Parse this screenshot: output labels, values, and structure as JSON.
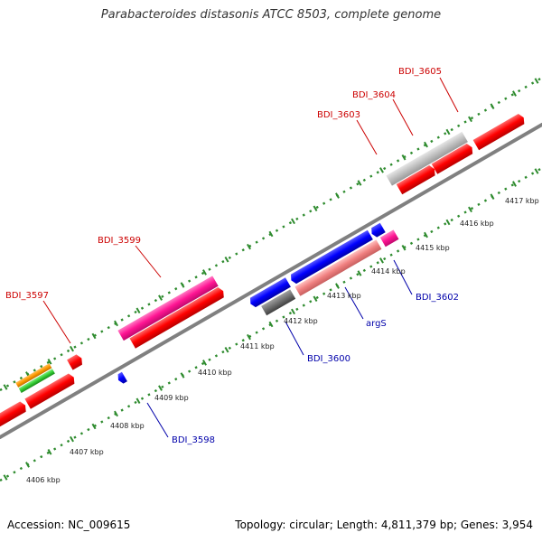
{
  "title": "Parabacteroides distasonis ATCC 8503, complete genome",
  "footer": {
    "accession_label": "Accession:",
    "accession": "NC_009615",
    "topology_label": "Topology:",
    "topology": "circular",
    "length_label": "Length:",
    "length": "4,811,379 bp",
    "genes_label": "Genes:",
    "genes": "3,954"
  },
  "colors": {
    "backbone": "#808080",
    "ticks": "#2e8b2e",
    "forward_gene": "#ff0000",
    "reverse_gene": "#0000ff",
    "rna_gene": "#ff1493",
    "pseudo_gene": "#c0c0c0",
    "label_forward": "#cc0000",
    "label_reverse": "#0000aa"
  },
  "scale_labels": [
    "4406 kbp",
    "4407 kbp",
    "4408 kbp",
    "4409 kbp",
    "4410 kbp",
    "4411 kbp",
    "4412 kbp",
    "4413 kbp",
    "4414 kbp",
    "4415 kbp",
    "4416 kbp",
    "4417 kbp"
  ],
  "gene_labels_top": [
    "BDI_3597",
    "BDI_3599",
    "BDI_3603",
    "BDI_3604",
    "BDI_3605"
  ],
  "gene_labels_bottom": [
    "BDI_3598",
    "BDI_3600",
    "argS",
    "BDI_3602"
  ]
}
